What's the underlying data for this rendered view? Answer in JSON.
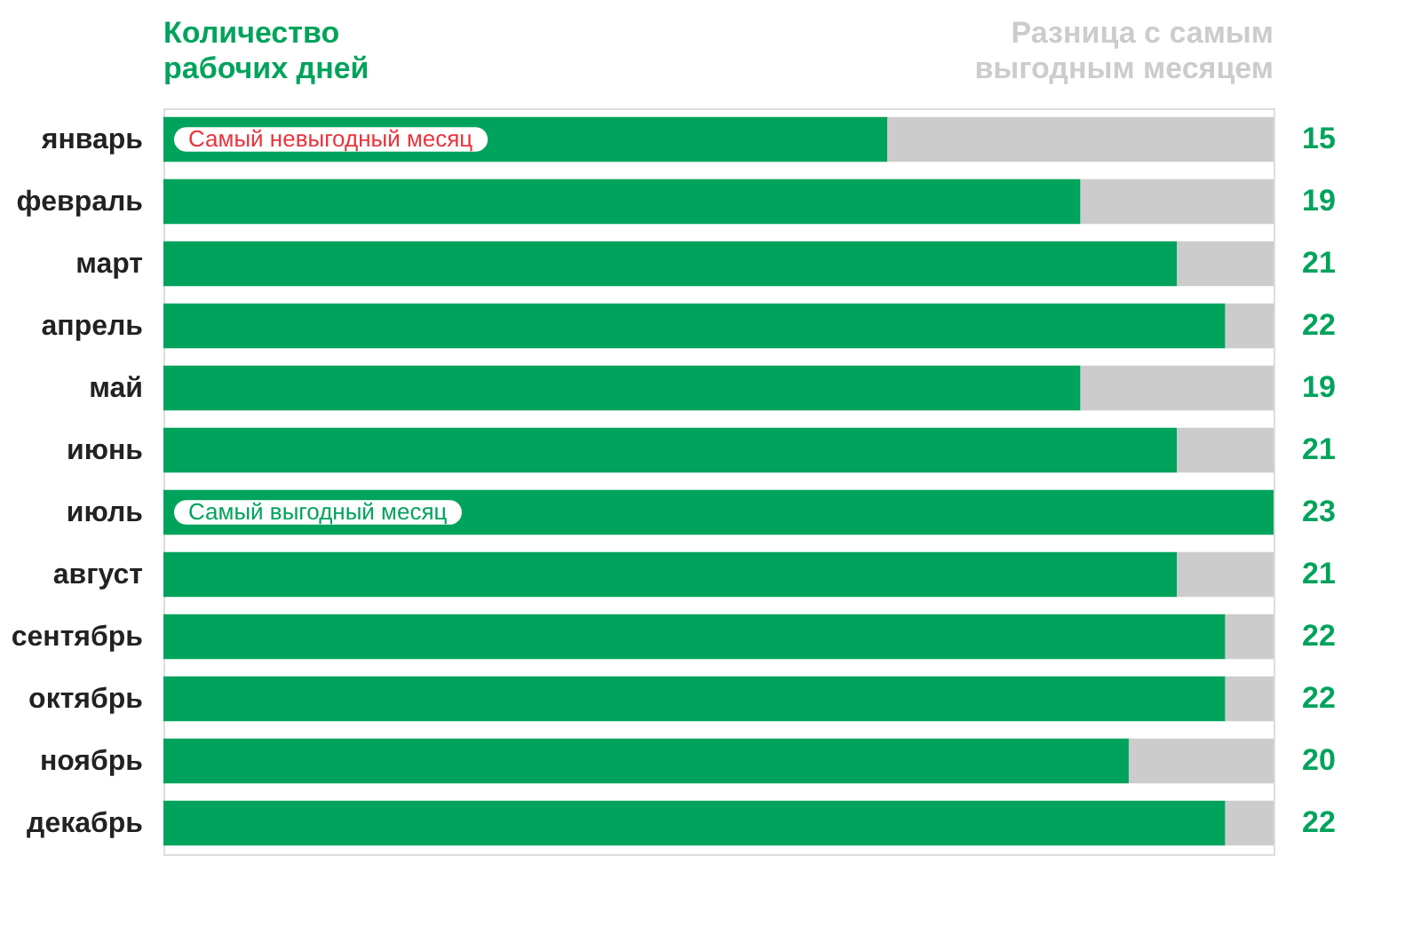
{
  "chart_data": {
    "type": "bar",
    "orientation": "horizontal",
    "stacked": true,
    "categories": [
      "январь",
      "февраль",
      "март",
      "апрель",
      "май",
      "июнь",
      "июль",
      "август",
      "сентябрь",
      "октябрь",
      "ноябрь",
      "декабрь"
    ],
    "series": [
      {
        "name": "Количество рабочих дней",
        "color": "#00a35c",
        "values": [
          15,
          19,
          21,
          22,
          19,
          21,
          23,
          21,
          22,
          22,
          20,
          22
        ],
        "data_labels": true
      },
      {
        "name": "Разница с самым выгодным месяцем",
        "color": "#cccccc",
        "values": [
          8,
          4,
          2,
          1,
          4,
          2,
          0,
          2,
          1,
          1,
          3,
          1
        ]
      }
    ],
    "xlim": [
      0,
      23
    ],
    "tick_labels": "y",
    "grid": false,
    "legend": "top",
    "annotations": [
      {
        "text": "Самый невыгодный месяц",
        "y": "январь"
      },
      {
        "text": "Самый выгодный месяц",
        "y": "июль"
      }
    ]
  }
}
